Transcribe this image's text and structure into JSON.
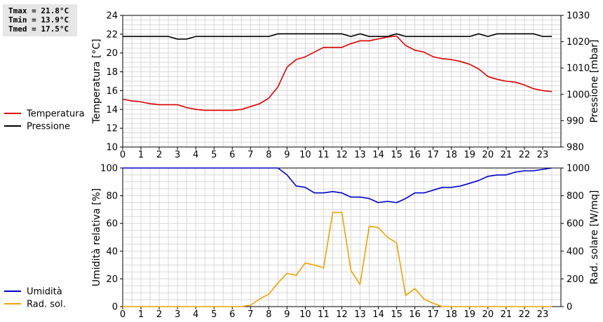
{
  "stats": {
    "tmax": "Tmax = 21.8°C",
    "tmin": "Tmin = 13.9°C",
    "tmed": "Tmed = 17.5°C"
  },
  "chart_data": [
    {
      "type": "line",
      "xlim": [
        0,
        24
      ],
      "x_ticks": [
        "0",
        "1",
        "2",
        "3",
        "4",
        "5",
        "6",
        "7",
        "8",
        "9",
        "10",
        "11",
        "12",
        "13",
        "14",
        "15",
        "16",
        "17",
        "18",
        "19",
        "20",
        "21",
        "22",
        "23"
      ],
      "ylabel_left": "Temperatura [°C]",
      "ylabel_right": "Pressione [mbar]",
      "ylim_left": [
        10,
        24
      ],
      "ylim_right": [
        980,
        1030
      ],
      "yticks_left": [
        10,
        12,
        14,
        16,
        18,
        20,
        22,
        24
      ],
      "yticks_right": [
        980,
        990,
        1000,
        1010,
        1020,
        1030
      ],
      "grid": true,
      "legend_position": "left",
      "series": [
        {
          "name": "Temperatura",
          "axis": "left",
          "color": "#dd0000",
          "x": [
            0,
            0.5,
            1,
            1.5,
            2,
            2.5,
            3,
            3.5,
            4,
            4.5,
            5,
            5.5,
            6,
            6.5,
            7,
            7.5,
            8,
            8.5,
            9,
            9.5,
            10,
            10.5,
            11,
            11.5,
            12,
            12.5,
            13,
            13.5,
            14,
            14.5,
            15,
            15.5,
            16,
            16.5,
            17,
            17.5,
            18,
            18.5,
            19,
            19.5,
            20,
            20.5,
            21,
            21.5,
            22,
            22.5,
            23,
            23.5
          ],
          "values": [
            15.1,
            14.9,
            14.8,
            14.6,
            14.5,
            14.5,
            14.5,
            14.2,
            14.0,
            13.9,
            13.9,
            13.9,
            13.9,
            14.0,
            14.3,
            14.6,
            15.2,
            16.4,
            18.5,
            19.3,
            19.6,
            20.1,
            20.6,
            20.6,
            20.6,
            21.0,
            21.3,
            21.3,
            21.5,
            21.7,
            21.8,
            20.8,
            20.3,
            20.1,
            19.6,
            19.4,
            19.3,
            19.1,
            18.8,
            18.3,
            17.5,
            17.2,
            17.0,
            16.9,
            16.6,
            16.2,
            16.0,
            15.9
          ]
        },
        {
          "name": "Pressione",
          "axis": "right",
          "color": "#000000",
          "x": [
            0,
            0.5,
            1,
            1.5,
            2,
            2.5,
            3,
            3.5,
            4,
            4.5,
            5,
            5.5,
            6,
            6.5,
            7,
            7.5,
            8,
            8.5,
            9,
            9.5,
            10,
            10.5,
            11,
            11.5,
            12,
            12.5,
            13,
            13.5,
            14,
            14.5,
            15,
            15.5,
            16,
            16.5,
            17,
            17.5,
            18,
            18.5,
            19,
            19.5,
            20,
            20.5,
            21,
            21.5,
            22,
            22.5,
            23,
            23.5
          ],
          "values": [
            1022,
            1022,
            1022,
            1022,
            1022,
            1022,
            1021,
            1021,
            1022,
            1022,
            1022,
            1022,
            1022,
            1022,
            1022,
            1022,
            1022,
            1023,
            1023,
            1023,
            1023,
            1023,
            1023,
            1023,
            1023,
            1022,
            1023,
            1022,
            1022,
            1022,
            1023,
            1022,
            1022,
            1022,
            1022,
            1022,
            1022,
            1022,
            1022,
            1023,
            1022,
            1023,
            1023,
            1023,
            1023,
            1023,
            1022,
            1022
          ]
        }
      ]
    },
    {
      "type": "line",
      "xlim": [
        0,
        24
      ],
      "x_ticks": [
        "0",
        "1",
        "2",
        "3",
        "4",
        "5",
        "6",
        "7",
        "8",
        "9",
        "10",
        "11",
        "12",
        "13",
        "14",
        "15",
        "16",
        "17",
        "18",
        "19",
        "20",
        "21",
        "22",
        "23"
      ],
      "ylabel_left": "Umidità relativa [%]",
      "ylabel_right": "Rad. solare [W/mq]",
      "ylim_left": [
        0,
        100
      ],
      "ylim_right": [
        0,
        1000
      ],
      "yticks_left": [
        0,
        20,
        40,
        60,
        80,
        100
      ],
      "yticks_right": [
        0,
        200,
        400,
        600,
        800,
        1000
      ],
      "grid": true,
      "legend_position": "left",
      "series": [
        {
          "name": "Umidità",
          "axis": "left",
          "color": "#0000cc",
          "x": [
            0,
            1,
            2,
            3,
            4,
            5,
            6,
            7,
            8,
            8.5,
            9,
            9.5,
            10,
            10.5,
            11,
            11.5,
            12,
            12.5,
            13,
            13.5,
            14,
            14.5,
            15,
            15.5,
            16,
            16.5,
            17,
            17.5,
            18,
            18.5,
            19,
            19.5,
            20,
            20.5,
            21,
            21.5,
            22,
            22.5,
            23,
            23.5
          ],
          "values": [
            100,
            100,
            100,
            100,
            100,
            100,
            100,
            100,
            100,
            100,
            95,
            87,
            86,
            82,
            82,
            83,
            82,
            79,
            79,
            78,
            75,
            76,
            75,
            78,
            82,
            82,
            84,
            86,
            86,
            87,
            89,
            91,
            94,
            95,
            95,
            97,
            98,
            98,
            99,
            100
          ]
        },
        {
          "name": "Rad. sol.",
          "axis": "right",
          "color": "#f0a000",
          "x": [
            0,
            1,
            2,
            3,
            4,
            5,
            6,
            6.5,
            7,
            7.5,
            8,
            8.5,
            9,
            9.5,
            10,
            10.5,
            11,
            11.5,
            12,
            12.5,
            13,
            13.5,
            14,
            14.5,
            15,
            15.5,
            16,
            16.5,
            17,
            17.5,
            18,
            19,
            20,
            21,
            22,
            23,
            23.5
          ],
          "values": [
            0,
            0,
            0,
            0,
            0,
            0,
            0,
            0,
            10,
            55,
            90,
            170,
            240,
            225,
            315,
            300,
            280,
            680,
            680,
            260,
            160,
            580,
            570,
            500,
            460,
            80,
            130,
            55,
            25,
            0,
            0,
            0,
            0,
            0,
            0,
            0,
            0
          ]
        }
      ]
    }
  ]
}
